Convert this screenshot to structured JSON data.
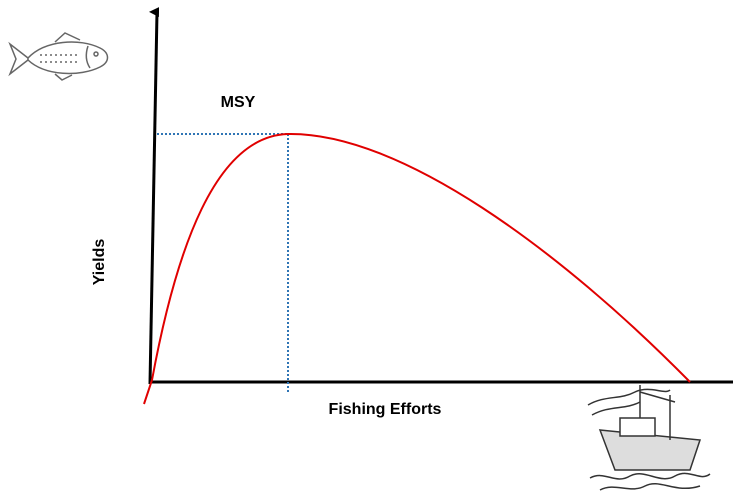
{
  "labels": {
    "peak": "MSY",
    "y_axis": "Yields",
    "x_axis": "Fishing Efforts"
  }
}
